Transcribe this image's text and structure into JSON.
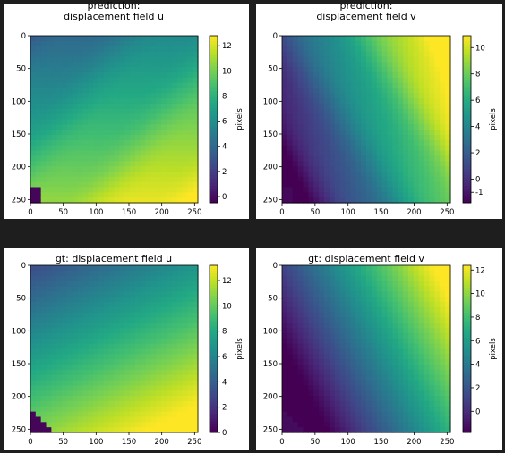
{
  "chart_data": [
    {
      "type": "heatmap",
      "title_lines": [
        "prediction:",
        "displacement field u"
      ],
      "x_ticks": [
        0,
        50,
        100,
        150,
        200,
        250
      ],
      "y_ticks": [
        0,
        50,
        100,
        150,
        200,
        250
      ],
      "xlim": [
        0,
        255
      ],
      "ylim": [
        255,
        0
      ],
      "colormap": "viridis",
      "colorbar": {
        "label": "pixels",
        "ticks": [
          0,
          2,
          4,
          6,
          8,
          10,
          12
        ],
        "range": [
          -0.5,
          12.8
        ]
      },
      "field": {
        "model": "pred_u",
        "min": -0.5,
        "max": 12.8
      }
    },
    {
      "type": "heatmap",
      "title_lines": [
        "prediction:",
        "displacement field v"
      ],
      "x_ticks": [
        0,
        50,
        100,
        150,
        200,
        250
      ],
      "y_ticks": [
        0,
        50,
        100,
        150,
        200,
        250
      ],
      "xlim": [
        0,
        255
      ],
      "ylim": [
        255,
        0
      ],
      "colormap": "viridis",
      "colorbar": {
        "label": "pixels",
        "ticks": [
          -1,
          0,
          2,
          4,
          6,
          8,
          10
        ],
        "range": [
          -1.8,
          10.9
        ]
      },
      "field": {
        "model": "pred_v",
        "min": -1.8,
        "max": 10.9
      }
    },
    {
      "type": "heatmap",
      "title_lines": [
        "gt: displacement field u"
      ],
      "x_ticks": [
        0,
        50,
        100,
        150,
        200,
        250
      ],
      "y_ticks": [
        0,
        50,
        100,
        150,
        200,
        250
      ],
      "xlim": [
        0,
        255
      ],
      "ylim": [
        255,
        0
      ],
      "colormap": "viridis",
      "colorbar": {
        "label": "pixels",
        "ticks": [
          0,
          2,
          4,
          6,
          8,
          10,
          12
        ],
        "range": [
          0,
          13.2
        ]
      },
      "field": {
        "model": "gt_u",
        "min": 0,
        "max": 13.2
      }
    },
    {
      "type": "heatmap",
      "title_lines": [
        "gt: displacement field v"
      ],
      "x_ticks": [
        0,
        50,
        100,
        150,
        200,
        250
      ],
      "y_ticks": [
        0,
        50,
        100,
        150,
        200,
        250
      ],
      "xlim": [
        0,
        255
      ],
      "ylim": [
        255,
        0
      ],
      "colormap": "viridis",
      "colorbar": {
        "label": "pixels",
        "ticks": [
          0,
          2,
          4,
          6,
          8,
          10,
          12
        ],
        "range": [
          -1.8,
          12.4
        ]
      },
      "field": {
        "model": "gt_v",
        "min": -1.8,
        "max": 12.4
      }
    }
  ]
}
